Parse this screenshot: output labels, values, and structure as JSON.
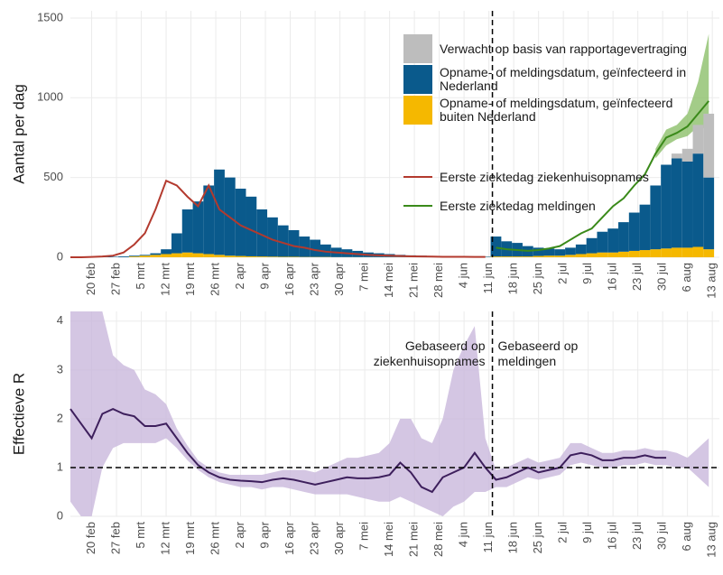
{
  "chart_data": [
    {
      "type": "bar",
      "ylabel": "Aantal per dag",
      "legend": "top-right",
      "grid": true,
      "xlim": [
        "14 feb",
        "15 aug"
      ],
      "ylim": [
        0,
        1545
      ],
      "yticks": [
        0,
        500,
        1000,
        1500
      ],
      "xticks": [
        "20 feb",
        "27 feb",
        "5 mrt",
        "12 mrt",
        "19 mrt",
        "26 mrt",
        "2 apr",
        "9 apr",
        "16 apr",
        "23 apr",
        "30 apr",
        "7 mei",
        "14 mei",
        "21 mei",
        "28 mei",
        "4 jun",
        "11 jun",
        "18 jun",
        "25 jun",
        "2 jul",
        "9 jul",
        "16 jul",
        "23 jul",
        "30 jul",
        "6 aug",
        "13 aug"
      ],
      "vline": "12 jun",
      "x": [
        "14 feb",
        "17 feb",
        "20 feb",
        "23 feb",
        "26 feb",
        "29 feb",
        "3 mrt",
        "6 mrt",
        "9 mrt",
        "12 mrt",
        "15 mrt",
        "18 mrt",
        "21 mrt",
        "24 mrt",
        "27 mrt",
        "30 mrt",
        "2 apr",
        "5 apr",
        "8 apr",
        "11 apr",
        "14 apr",
        "17 apr",
        "20 apr",
        "23 apr",
        "26 apr",
        "29 apr",
        "2 mei",
        "5 mei",
        "8 mei",
        "11 mei",
        "14 mei",
        "17 mei",
        "20 mei",
        "23 mei",
        "26 mei",
        "29 mei",
        "1 jun",
        "4 jun",
        "7 jun",
        "10 jun",
        "13 jun",
        "16 jun",
        "19 jun",
        "22 jun",
        "25 jun",
        "28 jun",
        "1 jul",
        "4 jul",
        "7 jul",
        "10 jul",
        "13 jul",
        "16 jul",
        "19 jul",
        "22 jul",
        "25 jul",
        "28 jul",
        "31 jul",
        "3 aug",
        "6 aug",
        "9 aug",
        "12 aug"
      ],
      "band": {
        "color": "#8cbf6a",
        "lower": [
          null,
          null,
          null,
          null,
          null,
          null,
          null,
          null,
          null,
          null,
          null,
          null,
          null,
          null,
          null,
          null,
          null,
          null,
          null,
          null,
          null,
          null,
          null,
          null,
          null,
          null,
          null,
          null,
          null,
          null,
          null,
          null,
          null,
          null,
          null,
          null,
          null,
          null,
          null,
          null,
          null,
          null,
          null,
          null,
          null,
          null,
          null,
          null,
          null,
          null,
          null,
          null,
          null,
          null,
          null,
          620,
          700,
          740,
          760,
          820,
          800
        ],
        "upper": [
          null,
          null,
          null,
          null,
          null,
          null,
          null,
          null,
          null,
          null,
          null,
          null,
          null,
          null,
          null,
          null,
          null,
          null,
          null,
          null,
          null,
          null,
          null,
          null,
          null,
          null,
          null,
          null,
          null,
          null,
          null,
          null,
          null,
          null,
          null,
          null,
          null,
          null,
          null,
          null,
          null,
          null,
          null,
          null,
          null,
          null,
          null,
          null,
          null,
          null,
          null,
          null,
          null,
          null,
          null,
          680,
          800,
          830,
          900,
          1100,
          1400
        ]
      },
      "series": [
        {
          "name": "Opname- of meldingsdatum, geïnfecteerd buiten Nederland",
          "type": "bar",
          "color": "#f5b800",
          "values": [
            0,
            0,
            0,
            0,
            0,
            0,
            5,
            10,
            15,
            20,
            25,
            30,
            25,
            20,
            15,
            10,
            8,
            6,
            5,
            4,
            3,
            3,
            2,
            2,
            2,
            1,
            1,
            1,
            1,
            1,
            1,
            1,
            1,
            1,
            1,
            1,
            1,
            1,
            1,
            1,
            5,
            5,
            5,
            5,
            8,
            10,
            10,
            15,
            20,
            25,
            30,
            30,
            35,
            40,
            45,
            50,
            55,
            60,
            60,
            65,
            50
          ]
        },
        {
          "name": "Opname- of meldingsdatum, geïnfecteerd in Nederland",
          "type": "bar",
          "color": "#0a5a8c",
          "values": [
            0,
            0,
            1,
            2,
            3,
            5,
            5,
            5,
            10,
            30,
            125,
            270,
            325,
            430,
            535,
            490,
            422,
            374,
            295,
            246,
            197,
            167,
            128,
            108,
            78,
            59,
            49,
            39,
            29,
            24,
            19,
            14,
            11,
            9,
            7,
            5,
            4,
            4,
            3,
            3,
            125,
            95,
            85,
            65,
            52,
            45,
            40,
            45,
            60,
            95,
            130,
            150,
            185,
            240,
            285,
            400,
            525,
            560,
            540,
            585,
            450
          ]
        },
        {
          "name": "Verwacht op basis van rapportagevertraging",
          "type": "bar",
          "color": "#bdbdbd",
          "values": [
            0,
            0,
            0,
            0,
            0,
            0,
            0,
            0,
            0,
            0,
            0,
            0,
            0,
            0,
            0,
            0,
            0,
            0,
            0,
            0,
            0,
            0,
            0,
            0,
            0,
            0,
            0,
            0,
            0,
            0,
            0,
            0,
            0,
            0,
            0,
            0,
            0,
            0,
            0,
            0,
            0,
            0,
            0,
            0,
            0,
            0,
            0,
            0,
            0,
            0,
            0,
            0,
            0,
            0,
            0,
            0,
            0,
            30,
            80,
            180,
            400
          ]
        },
        {
          "name": "Eerste ziektedag ziekenhuisopnames",
          "type": "line",
          "color": "#b33a2e",
          "values": [
            0,
            0,
            2,
            5,
            10,
            30,
            80,
            150,
            300,
            480,
            450,
            380,
            320,
            450,
            300,
            250,
            200,
            170,
            140,
            110,
            90,
            70,
            60,
            45,
            35,
            30,
            25,
            20,
            15,
            12,
            10,
            8,
            6,
            5,
            4,
            3,
            3,
            3,
            2,
            2,
            null,
            null,
            null,
            null,
            null,
            null,
            null,
            null,
            null,
            null,
            null,
            null,
            null,
            null,
            null,
            null,
            null,
            null,
            null,
            null,
            null
          ]
        },
        {
          "name": "Eerste ziektedag meldingen",
          "type": "line",
          "color": "#3a8a1a",
          "values": [
            null,
            null,
            null,
            null,
            null,
            null,
            null,
            null,
            null,
            null,
            null,
            null,
            null,
            null,
            null,
            null,
            null,
            null,
            null,
            null,
            null,
            null,
            null,
            null,
            null,
            null,
            null,
            null,
            null,
            null,
            null,
            null,
            null,
            null,
            null,
            null,
            null,
            null,
            null,
            null,
            60,
            50,
            45,
            40,
            45,
            55,
            70,
            110,
            150,
            180,
            250,
            320,
            370,
            450,
            520,
            650,
            750,
            780,
            820,
            900,
            980
          ]
        }
      ]
    },
    {
      "type": "line",
      "ylabel": "Effectieve R",
      "grid": true,
      "xlim": [
        "14 feb",
        "15 aug"
      ],
      "ylim": [
        0,
        4.2
      ],
      "yticks": [
        0,
        1,
        2,
        3,
        4
      ],
      "xticks": [
        "20 feb",
        "27 feb",
        "5 mrt",
        "12 mrt",
        "19 mrt",
        "26 mrt",
        "2 apr",
        "9 apr",
        "16 apr",
        "23 apr",
        "30 apr",
        "7 mei",
        "14 mei",
        "21 mei",
        "28 mei",
        "4 jun",
        "11 jun",
        "18 jun",
        "25 jun",
        "2 jul",
        "9 jul",
        "16 jul",
        "23 jul",
        "30 jul",
        "6 aug",
        "13 aug"
      ],
      "vline": "12 jun",
      "hline": 1,
      "annotations": [
        {
          "text": "Gebaseerd op ziekenhuisopnames",
          "side": "left"
        },
        {
          "text": "Gebaseerd op meldingen",
          "side": "right"
        }
      ],
      "x": [
        "14 feb",
        "17 feb",
        "20 feb",
        "23 feb",
        "26 feb",
        "29 feb",
        "3 mrt",
        "6 mrt",
        "9 mrt",
        "12 mrt",
        "15 mrt",
        "18 mrt",
        "21 mrt",
        "24 mrt",
        "27 mrt",
        "30 mrt",
        "2 apr",
        "5 apr",
        "8 apr",
        "11 apr",
        "14 apr",
        "17 apr",
        "20 apr",
        "23 apr",
        "26 apr",
        "29 apr",
        "2 mei",
        "5 mei",
        "8 mei",
        "11 mei",
        "14 mei",
        "17 mei",
        "20 mei",
        "23 mei",
        "26 mei",
        "29 mei",
        "1 jun",
        "4 jun",
        "7 jun",
        "10 jun",
        "13 jun",
        "16 jun",
        "19 jun",
        "22 jun",
        "25 jun",
        "28 jun",
        "1 jul",
        "4 jul",
        "7 jul",
        "10 jul",
        "13 jul",
        "16 jul",
        "19 jul",
        "22 jul",
        "25 jul",
        "28 jul",
        "31 jul",
        "3 aug",
        "6 aug",
        "9 aug",
        "12 aug"
      ],
      "band": {
        "color": "#c9b8dc",
        "lower": [
          0.3,
          0,
          0,
          1.0,
          1.4,
          1.5,
          1.5,
          1.5,
          1.5,
          1.6,
          1.4,
          1.15,
          0.95,
          0.8,
          0.7,
          0.65,
          0.6,
          0.6,
          0.55,
          0.6,
          0.6,
          0.55,
          0.5,
          0.45,
          0.45,
          0.45,
          0.45,
          0.4,
          0.35,
          0.3,
          0.3,
          0.4,
          0.3,
          0.2,
          0.1,
          0,
          0.2,
          0.3,
          0.5,
          0.5,
          0.6,
          0.6,
          0.7,
          0.8,
          0.75,
          0.8,
          0.85,
          1.05,
          1.1,
          1.05,
          1.0,
          1.0,
          1.05,
          1.05,
          1.1,
          1.05,
          1.05,
          1.0,
          1.0,
          0.8,
          0.6
        ],
        "upper": [
          4.2,
          4.2,
          4.2,
          4.2,
          3.3,
          3.1,
          3.0,
          2.6,
          2.5,
          2.3,
          1.8,
          1.45,
          1.15,
          1.0,
          0.9,
          0.85,
          0.85,
          0.85,
          0.85,
          0.9,
          0.95,
          0.95,
          0.95,
          0.9,
          1.0,
          1.1,
          1.2,
          1.2,
          1.25,
          1.3,
          1.5,
          2.0,
          2.0,
          1.6,
          1.5,
          2.0,
          3.0,
          3.5,
          3.9,
          1.6,
          0.95,
          1.0,
          1.1,
          1.2,
          1.1,
          1.15,
          1.2,
          1.5,
          1.5,
          1.4,
          1.3,
          1.3,
          1.35,
          1.35,
          1.4,
          1.35,
          1.35,
          1.3,
          1.2,
          1.4,
          1.6
        ]
      },
      "series": [
        {
          "type": "line",
          "color": "#3d1f5c",
          "values": [
            2.2,
            1.9,
            1.6,
            2.1,
            2.2,
            2.1,
            2.05,
            1.85,
            1.85,
            1.9,
            1.6,
            1.3,
            1.05,
            0.9,
            0.8,
            0.75,
            0.73,
            0.72,
            0.7,
            0.75,
            0.78,
            0.75,
            0.7,
            0.65,
            0.7,
            0.75,
            0.8,
            0.78,
            0.78,
            0.8,
            0.85,
            1.1,
            0.9,
            0.6,
            0.5,
            0.8,
            0.9,
            1.0,
            1.3,
            1.0,
            0.75,
            0.8,
            0.9,
            1.0,
            0.9,
            0.95,
            1.0,
            1.25,
            1.3,
            1.25,
            1.15,
            1.15,
            1.2,
            1.2,
            1.25,
            1.2,
            1.2,
            null,
            null,
            null,
            null
          ]
        }
      ]
    }
  ]
}
